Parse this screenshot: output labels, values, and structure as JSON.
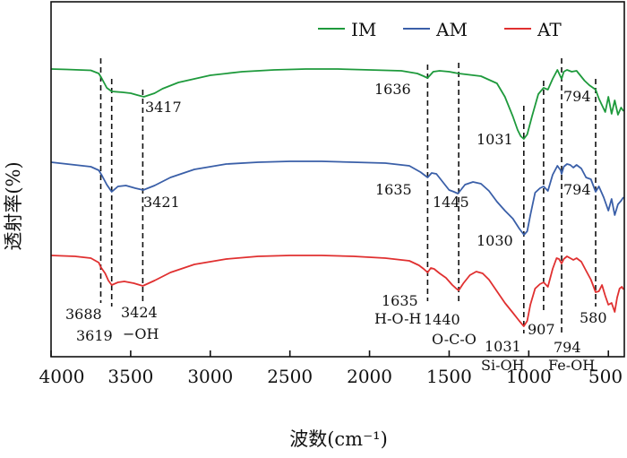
{
  "chart_data": {
    "type": "line",
    "title": "",
    "xlabel": "波数(cm⁻¹)",
    "ylabel": "透射率(%)",
    "xlim": [
      4000,
      400
    ],
    "x_reversed": true,
    "xticks": [
      4000,
      3500,
      3000,
      2500,
      2000,
      1500,
      1000,
      500
    ],
    "legend": {
      "position": "top-right",
      "entries": [
        "IM",
        "AM",
        "AT"
      ]
    },
    "series": [
      {
        "name": "IM",
        "color": "#1e9a3c",
        "points": [
          [
            4000,
            77
          ],
          [
            3900,
            77.5
          ],
          [
            3750,
            78.5
          ],
          [
            3700,
            82
          ],
          [
            3680,
            88
          ],
          [
            3650,
            98
          ],
          [
            3619,
            102
          ],
          [
            3550,
            103
          ],
          [
            3500,
            104
          ],
          [
            3460,
            106
          ],
          [
            3417,
            108
          ],
          [
            3350,
            104
          ],
          [
            3300,
            99
          ],
          [
            3200,
            92
          ],
          [
            3000,
            84
          ],
          [
            2800,
            80
          ],
          [
            2600,
            78
          ],
          [
            2400,
            77
          ],
          [
            2200,
            77
          ],
          [
            2000,
            78
          ],
          [
            1800,
            79
          ],
          [
            1700,
            82
          ],
          [
            1660,
            85
          ],
          [
            1636,
            87
          ],
          [
            1620,
            84
          ],
          [
            1600,
            80
          ],
          [
            1560,
            79
          ],
          [
            1500,
            80
          ],
          [
            1440,
            82
          ],
          [
            1300,
            85
          ],
          [
            1200,
            93
          ],
          [
            1150,
            108
          ],
          [
            1100,
            130
          ],
          [
            1070,
            145
          ],
          [
            1050,
            152
          ],
          [
            1031,
            155
          ],
          [
            1010,
            150
          ],
          [
            980,
            130
          ],
          [
            940,
            105
          ],
          [
            907,
            98
          ],
          [
            880,
            100
          ],
          [
            850,
            88
          ],
          [
            820,
            78
          ],
          [
            794,
            88
          ],
          [
            780,
            80
          ],
          [
            760,
            78
          ],
          [
            730,
            80
          ],
          [
            700,
            79
          ],
          [
            650,
            90
          ],
          [
            620,
            95
          ],
          [
            580,
            100
          ],
          [
            560,
            110
          ],
          [
            520,
            125
          ],
          [
            500,
            108
          ],
          [
            480,
            127
          ],
          [
            460,
            112
          ],
          [
            440,
            128
          ],
          [
            420,
            120
          ],
          [
            405,
            124
          ]
        ]
      },
      {
        "name": "AM",
        "color": "#3a5fa8",
        "points": [
          [
            4000,
            181
          ],
          [
            3900,
            183
          ],
          [
            3750,
            186
          ],
          [
            3700,
            190
          ],
          [
            3680,
            196
          ],
          [
            3650,
            206
          ],
          [
            3619,
            214
          ],
          [
            3580,
            208
          ],
          [
            3530,
            207
          ],
          [
            3470,
            210
          ],
          [
            3421,
            212
          ],
          [
            3350,
            207
          ],
          [
            3250,
            198
          ],
          [
            3100,
            189
          ],
          [
            2900,
            183
          ],
          [
            2700,
            181
          ],
          [
            2500,
            180
          ],
          [
            2300,
            180
          ],
          [
            2100,
            181
          ],
          [
            1900,
            182
          ],
          [
            1750,
            185
          ],
          [
            1680,
            192
          ],
          [
            1635,
            198
          ],
          [
            1610,
            193
          ],
          [
            1580,
            194
          ],
          [
            1540,
            203
          ],
          [
            1500,
            212
          ],
          [
            1470,
            214
          ],
          [
            1445,
            216
          ],
          [
            1400,
            206
          ],
          [
            1350,
            203
          ],
          [
            1300,
            205
          ],
          [
            1250,
            213
          ],
          [
            1200,
            225
          ],
          [
            1150,
            235
          ],
          [
            1100,
            244
          ],
          [
            1060,
            255
          ],
          [
            1030,
            262
          ],
          [
            1010,
            258
          ],
          [
            990,
            240
          ],
          [
            960,
            215
          ],
          [
            930,
            210
          ],
          [
            907,
            208
          ],
          [
            880,
            213
          ],
          [
            850,
            195
          ],
          [
            820,
            185
          ],
          [
            800,
            190
          ],
          [
            794,
            194
          ],
          [
            780,
            186
          ],
          [
            760,
            183
          ],
          [
            740,
            184
          ],
          [
            720,
            187
          ],
          [
            700,
            184
          ],
          [
            670,
            188
          ],
          [
            640,
            198
          ],
          [
            610,
            200
          ],
          [
            580,
            214
          ],
          [
            560,
            208
          ],
          [
            530,
            220
          ],
          [
            500,
            235
          ],
          [
            480,
            222
          ],
          [
            460,
            240
          ],
          [
            440,
            228
          ],
          [
            420,
            224
          ],
          [
            405,
            220
          ]
        ]
      },
      {
        "name": "AT",
        "color": "#e03030",
        "points": [
          [
            4000,
            285
          ],
          [
            3850,
            286
          ],
          [
            3750,
            288
          ],
          [
            3700,
            293
          ],
          [
            3688,
            298
          ],
          [
            3660,
            305
          ],
          [
            3640,
            313
          ],
          [
            3619,
            318
          ],
          [
            3580,
            315
          ],
          [
            3540,
            314
          ],
          [
            3480,
            316
          ],
          [
            3424,
            319
          ],
          [
            3350,
            313
          ],
          [
            3250,
            304
          ],
          [
            3100,
            295
          ],
          [
            2900,
            289
          ],
          [
            2700,
            286
          ],
          [
            2500,
            285
          ],
          [
            2300,
            285
          ],
          [
            2100,
            286
          ],
          [
            1900,
            288
          ],
          [
            1750,
            291
          ],
          [
            1690,
            296
          ],
          [
            1660,
            300
          ],
          [
            1635,
            304
          ],
          [
            1615,
            299
          ],
          [
            1595,
            300
          ],
          [
            1560,
            305
          ],
          [
            1520,
            310
          ],
          [
            1480,
            318
          ],
          [
            1455,
            322
          ],
          [
            1440,
            324
          ],
          [
            1410,
            316
          ],
          [
            1370,
            307
          ],
          [
            1330,
            303
          ],
          [
            1290,
            305
          ],
          [
            1250,
            312
          ],
          [
            1200,
            325
          ],
          [
            1150,
            338
          ],
          [
            1100,
            349
          ],
          [
            1060,
            358
          ],
          [
            1031,
            364
          ],
          [
            1010,
            358
          ],
          [
            990,
            340
          ],
          [
            960,
            322
          ],
          [
            930,
            317
          ],
          [
            907,
            315
          ],
          [
            880,
            320
          ],
          [
            850,
            300
          ],
          [
            825,
            288
          ],
          [
            810,
            289
          ],
          [
            794,
            294
          ],
          [
            780,
            289
          ],
          [
            760,
            286
          ],
          [
            740,
            288
          ],
          [
            720,
            290
          ],
          [
            700,
            288
          ],
          [
            670,
            292
          ],
          [
            640,
            302
          ],
          [
            610,
            312
          ],
          [
            580,
            326
          ],
          [
            560,
            325
          ],
          [
            540,
            318
          ],
          [
            520,
            330
          ],
          [
            500,
            340
          ],
          [
            480,
            338
          ],
          [
            460,
            348
          ],
          [
            445,
            332
          ],
          [
            430,
            322
          ],
          [
            415,
            320
          ],
          [
            405,
            323
          ]
        ]
      }
    ],
    "annotations": [
      {
        "x": 3688,
        "label": "3688",
        "color": "#111111"
      },
      {
        "x": 3619,
        "label": "3619",
        "color": "#111111"
      },
      {
        "x": 3417,
        "label": "3417",
        "series": "IM"
      },
      {
        "x": 3421,
        "label": "3421",
        "series": "AM"
      },
      {
        "x": 3424,
        "label": "3424",
        "series": "AT"
      },
      {
        "x": 1636,
        "label": "1636",
        "series": "IM"
      },
      {
        "x": 1635,
        "label": "1635",
        "series": "AM"
      },
      {
        "x": 1635,
        "label": "1635",
        "series": "AT"
      },
      {
        "x": 1445,
        "label": "1445",
        "series": "AM"
      },
      {
        "x": 1440,
        "label": "1440",
        "series": "AT"
      },
      {
        "x": 1031,
        "label": "1031",
        "series": "IM"
      },
      {
        "x": 1030,
        "label": "1030",
        "series": "AM"
      },
      {
        "x": 1031,
        "label": "1031",
        "series": "AT"
      },
      {
        "x": 907,
        "label": "907",
        "series": "AT"
      },
      {
        "x": 794,
        "label": "794",
        "series": "IM"
      },
      {
        "x": 794,
        "label": "794",
        "series": "AM"
      },
      {
        "x": 794,
        "label": "794",
        "series": "AT"
      },
      {
        "x": 580,
        "label": "580",
        "series": "AT"
      }
    ],
    "group_labels": [
      "−OH",
      "H-O-H",
      "O-C-O",
      "Si-OH",
      "Fe-OH"
    ]
  }
}
